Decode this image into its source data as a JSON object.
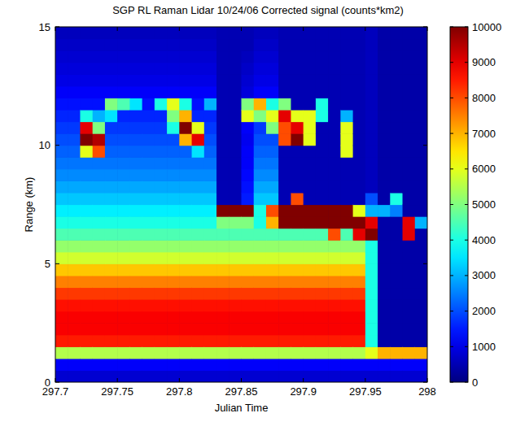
{
  "chart_data": {
    "type": "heatmap",
    "title": "SGP RL Raman Lidar 10/24/06 Corrected signal (counts*km2)",
    "x_label": "Julian Time",
    "y_label": "Range (km)",
    "xlim": [
      297.7,
      298
    ],
    "xticks": [
      297.7,
      297.75,
      297.8,
      297.85,
      297.9,
      297.95,
      298
    ],
    "ylim": [
      0,
      15
    ],
    "yticks": [
      0,
      5,
      10,
      15
    ],
    "x": [
      297.705,
      297.715,
      297.725,
      297.735,
      297.745,
      297.755,
      297.765,
      297.775,
      297.785,
      297.795,
      297.805,
      297.815,
      297.825,
      297.835,
      297.845,
      297.855,
      297.865,
      297.875,
      297.885,
      297.895,
      297.905,
      297.915,
      297.925,
      297.935,
      297.945,
      297.955,
      297.965,
      297.975,
      297.985,
      297.995
    ],
    "y": [
      0.25,
      0.75,
      1.25,
      1.75,
      2.25,
      2.75,
      3.25,
      3.75,
      4.25,
      4.75,
      5.25,
      5.75,
      6.25,
      6.75,
      7.25,
      7.75,
      8.25,
      8.75,
      9.25,
      9.75,
      10.25,
      10.75,
      11.25,
      11.75,
      12.25,
      12.75,
      13.25,
      13.75,
      14.25,
      14.75
    ],
    "values": [
      [
        800,
        1200,
        5500,
        8500,
        8800,
        8800,
        8600,
        8200,
        7500,
        6800,
        5800,
        5200,
        4500,
        4000,
        3600,
        3200,
        2900,
        2600,
        2400,
        2200,
        2000,
        1800,
        1600,
        1400,
        1200,
        1000,
        900,
        800,
        700,
        600
      ],
      [
        800,
        1200,
        5500,
        8500,
        8800,
        8800,
        8600,
        8200,
        7500,
        6800,
        5800,
        5200,
        4500,
        4000,
        3600,
        3200,
        2900,
        2600,
        2400,
        2200,
        2000,
        1800,
        1600,
        1400,
        1200,
        1000,
        900,
        800,
        700,
        600
      ],
      [
        800,
        1200,
        5500,
        8500,
        8800,
        8800,
        8600,
        8200,
        7500,
        6800,
        5800,
        5200,
        4500,
        4000,
        3600,
        3200,
        2900,
        2600,
        2400,
        6000,
        10000,
        9000,
        4000,
        1400,
        1200,
        1000,
        900,
        800,
        700,
        600
      ],
      [
        800,
        1200,
        5500,
        8500,
        8800,
        8800,
        8600,
        8200,
        7500,
        6800,
        5800,
        5200,
        4500,
        4000,
        3600,
        3200,
        2900,
        2600,
        2400,
        8000,
        9500,
        5000,
        3000,
        1400,
        1200,
        1000,
        900,
        800,
        700,
        600
      ],
      [
        800,
        1200,
        5500,
        8500,
        8800,
        8800,
        8600,
        8200,
        7500,
        6800,
        5800,
        5200,
        4500,
        4000,
        3600,
        3200,
        2900,
        2600,
        2400,
        2200,
        2000,
        1800,
        3500,
        5000,
        1200,
        1000,
        900,
        800,
        700,
        600
      ],
      [
        800,
        1200,
        5500,
        8500,
        8800,
        8800,
        8600,
        8200,
        7500,
        6800,
        5800,
        5200,
        4500,
        4000,
        3600,
        3200,
        2900,
        2600,
        2400,
        2200,
        2000,
        1800,
        1600,
        4500,
        1200,
        1000,
        900,
        800,
        700,
        600
      ],
      [
        800,
        1200,
        5500,
        8500,
        8800,
        8800,
        8600,
        8200,
        7500,
        6800,
        5800,
        5200,
        4500,
        4000,
        3600,
        3200,
        2900,
        2600,
        2400,
        2200,
        2000,
        1800,
        1600,
        3500,
        1200,
        1000,
        900,
        800,
        700,
        600
      ],
      [
        800,
        1200,
        5500,
        8500,
        8800,
        8800,
        8600,
        8200,
        7500,
        6800,
        5800,
        5200,
        4500,
        4000,
        3600,
        3200,
        2900,
        2600,
        2400,
        2200,
        2000,
        1800,
        1600,
        1400,
        1200,
        1000,
        900,
        800,
        700,
        600
      ],
      [
        800,
        1200,
        5500,
        8500,
        8800,
        8800,
        8600,
        8200,
        7500,
        6800,
        5800,
        5200,
        4500,
        4000,
        3600,
        3200,
        2900,
        2600,
        2400,
        2200,
        2000,
        1800,
        1600,
        4000,
        1200,
        1000,
        900,
        800,
        700,
        600
      ],
      [
        800,
        1200,
        5500,
        8500,
        8800,
        8800,
        8600,
        8200,
        7500,
        6800,
        5800,
        5200,
        4500,
        4000,
        3600,
        3200,
        2900,
        2600,
        2400,
        2200,
        2000,
        4000,
        5000,
        6000,
        1200,
        1000,
        900,
        800,
        700,
        600
      ],
      [
        800,
        1200,
        5500,
        8500,
        8800,
        8800,
        8600,
        8200,
        7500,
        6800,
        5800,
        5200,
        4500,
        4000,
        3600,
        3200,
        2900,
        2600,
        2400,
        2200,
        7000,
        10000,
        7000,
        4000,
        1200,
        1000,
        900,
        800,
        700,
        600
      ],
      [
        800,
        1200,
        5500,
        8500,
        8800,
        8800,
        8600,
        8200,
        7500,
        6800,
        5800,
        5200,
        4500,
        4000,
        3600,
        3200,
        2900,
        2600,
        2400,
        3500,
        9000,
        6000,
        1600,
        1400,
        1200,
        1000,
        900,
        800,
        700,
        600
      ],
      [
        800,
        1200,
        5500,
        8500,
        8800,
        8800,
        8600,
        8200,
        7500,
        6800,
        5800,
        5200,
        4500,
        4000,
        3600,
        3200,
        2900,
        2600,
        2400,
        2200,
        2000,
        1800,
        1600,
        3000,
        1200,
        1000,
        900,
        800,
        700,
        600
      ],
      [
        800,
        1200,
        5500,
        8500,
        8800,
        8800,
        8600,
        8200,
        7500,
        6800,
        5800,
        5200,
        4500,
        5000,
        10000,
        500,
        500,
        500,
        500,
        500,
        500,
        500,
        500,
        500,
        500,
        500,
        500,
        500,
        500,
        500
      ],
      [
        800,
        1200,
        5500,
        8500,
        8800,
        8800,
        8600,
        8200,
        7500,
        6800,
        5800,
        5200,
        4500,
        5000,
        10000,
        500,
        500,
        500,
        500,
        500,
        500,
        500,
        500,
        500,
        500,
        500,
        500,
        500,
        500,
        500
      ],
      [
        800,
        1200,
        5500,
        8500,
        8800,
        8800,
        8600,
        8200,
        7500,
        6800,
        5800,
        5200,
        4500,
        5000,
        10000,
        1500,
        1400,
        1300,
        1200,
        1200,
        1100,
        1200,
        6000,
        5000,
        900,
        800,
        700,
        600,
        500,
        500
      ],
      [
        800,
        1200,
        5500,
        8500,
        8800,
        8800,
        8600,
        8200,
        7500,
        6800,
        5800,
        5200,
        4500,
        4000,
        4000,
        3200,
        2900,
        2600,
        2400,
        2200,
        2000,
        1800,
        5000,
        7000,
        1200,
        1000,
        900,
        800,
        700,
        600
      ],
      [
        800,
        1200,
        5500,
        8500,
        8800,
        8800,
        8600,
        8200,
        7500,
        6800,
        5800,
        5200,
        4500,
        7000,
        8000,
        3200,
        2900,
        2600,
        2400,
        2200,
        2000,
        5000,
        6000,
        4000,
        1200,
        1000,
        900,
        800,
        700,
        600
      ],
      [
        800,
        1200,
        5500,
        8500,
        8800,
        8800,
        8600,
        8200,
        7500,
        6800,
        5800,
        5200,
        4500,
        10000,
        10000,
        500,
        500,
        500,
        500,
        500,
        8000,
        8000,
        9000,
        5000,
        500,
        500,
        500,
        500,
        500,
        500
      ],
      [
        800,
        1200,
        5500,
        8500,
        8800,
        8800,
        8600,
        8200,
        7500,
        6800,
        5800,
        5200,
        4500,
        10000,
        10000,
        8000,
        500,
        500,
        500,
        500,
        10000,
        9000,
        6000,
        500,
        500,
        500,
        500,
        500,
        500,
        500
      ],
      [
        800,
        1200,
        5500,
        8500,
        8800,
        8800,
        8600,
        8200,
        7500,
        6800,
        5800,
        5200,
        4500,
        10000,
        10000,
        500,
        500,
        500,
        500,
        500,
        6000,
        6000,
        6000,
        500,
        500,
        500,
        500,
        500,
        500,
        500
      ],
      [
        800,
        1200,
        5500,
        8500,
        8800,
        8800,
        8600,
        8200,
        7500,
        6800,
        5800,
        5200,
        4500,
        10000,
        10000,
        500,
        500,
        500,
        500,
        500,
        500,
        500,
        4000,
        4000,
        500,
        500,
        500,
        500,
        500,
        500
      ],
      [
        800,
        1200,
        5500,
        8500,
        8800,
        8800,
        8600,
        8200,
        7500,
        6800,
        5800,
        5200,
        8000,
        10000,
        10000,
        500,
        500,
        500,
        500,
        500,
        500,
        500,
        500,
        500,
        500,
        500,
        500,
        500,
        500,
        500
      ],
      [
        800,
        1200,
        5500,
        8500,
        8800,
        8800,
        8600,
        8200,
        7500,
        6800,
        5800,
        5200,
        4500,
        10000,
        10000,
        500,
        500,
        500,
        500,
        6000,
        6000,
        6000,
        3000,
        500,
        500,
        500,
        500,
        500,
        500,
        500
      ],
      [
        800,
        1200,
        5500,
        8500,
        8800,
        8800,
        8600,
        8200,
        7500,
        6800,
        5800,
        5200,
        9000,
        10000,
        6000,
        500,
        500,
        500,
        500,
        500,
        500,
        500,
        500,
        500,
        500,
        500,
        500,
        500,
        500,
        500
      ],
      [
        800,
        1200,
        6000,
        4000,
        4000,
        4000,
        4000,
        4000,
        4000,
        4000,
        4000,
        4000,
        10000,
        9000,
        3000,
        2000,
        600,
        600,
        600,
        600,
        600,
        600,
        600,
        600,
        600,
        600,
        600,
        600,
        600,
        600
      ],
      [
        800,
        1200,
        7000,
        400,
        400,
        400,
        400,
        400,
        400,
        400,
        400,
        400,
        400,
        400,
        3000,
        400,
        400,
        400,
        400,
        400,
        400,
        400,
        400,
        400,
        400,
        400,
        400,
        400,
        400,
        400
      ],
      [
        800,
        1200,
        7000,
        400,
        400,
        400,
        400,
        400,
        400,
        400,
        400,
        400,
        400,
        400,
        2500,
        4000,
        400,
        400,
        400,
        400,
        400,
        400,
        400,
        400,
        400,
        400,
        400,
        400,
        400,
        400
      ],
      [
        800,
        1200,
        7000,
        400,
        400,
        400,
        400,
        400,
        400,
        400,
        400,
        400,
        9000,
        9000,
        400,
        400,
        400,
        400,
        400,
        400,
        400,
        400,
        400,
        400,
        400,
        400,
        400,
        400,
        400,
        400
      ],
      [
        800,
        1200,
        7000,
        400,
        400,
        400,
        400,
        400,
        400,
        400,
        400,
        400,
        400,
        3000,
        400,
        400,
        400,
        400,
        400,
        400,
        400,
        400,
        400,
        400,
        400,
        400,
        400,
        400,
        400,
        400
      ]
    ],
    "colorbar_range": [
      0,
      10000
    ],
    "colorbar_ticks": [
      0,
      1000,
      2000,
      3000,
      4000,
      5000,
      6000,
      7000,
      8000,
      9000,
      10000
    ]
  }
}
